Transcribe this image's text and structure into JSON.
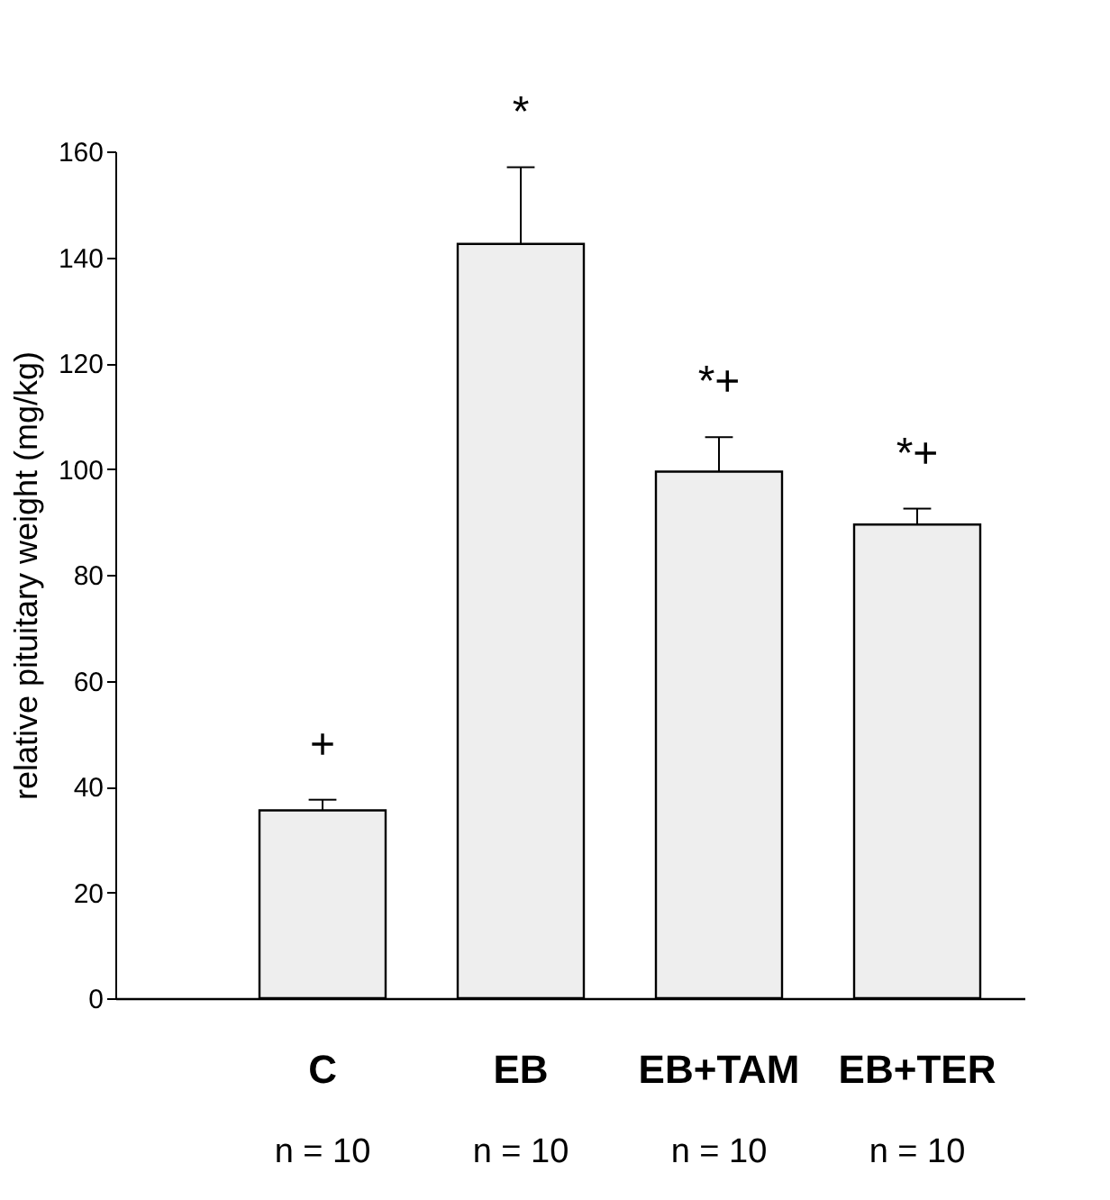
{
  "chart_data": {
    "type": "bar",
    "ylabel": "relative pituitary weight (mg/kg)",
    "categories": [
      "C",
      "EB",
      "EB+TAM",
      "EB+TER"
    ],
    "values": [
      35.5,
      142.5,
      99.5,
      89.5
    ],
    "errors": [
      [
        35.5,
        37.5
      ],
      [
        142.5,
        157
      ],
      [
        99.5,
        106
      ],
      [
        89.5,
        92.5
      ]
    ],
    "color": "#eeeeee",
    "ylim": [
      0,
      160
    ],
    "yticks": [
      0,
      20,
      40,
      60,
      80,
      100,
      120,
      140,
      160
    ],
    "grid": false,
    "annotations": [
      "+",
      "*",
      "*+",
      "*+",
      "n = 10",
      "n = 10",
      "n = 10",
      "n = 10"
    ]
  }
}
